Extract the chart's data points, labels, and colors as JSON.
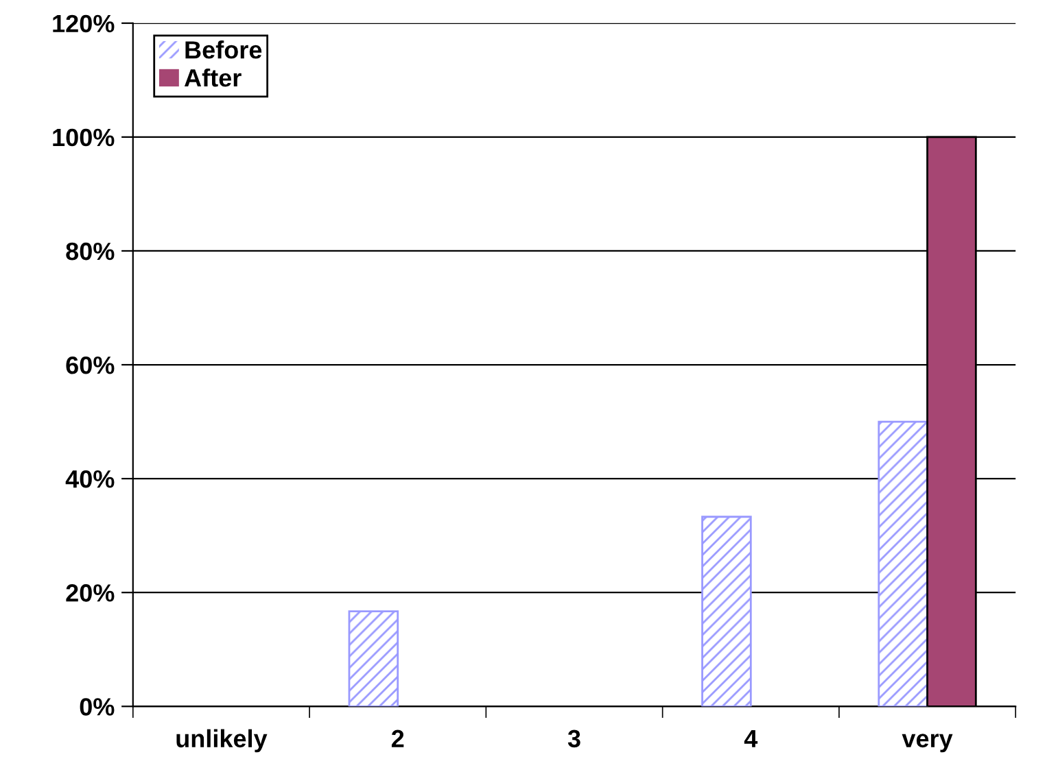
{
  "chart_data": {
    "type": "bar",
    "categories": [
      "unlikely",
      "2",
      "3",
      "4",
      "very"
    ],
    "series": [
      {
        "name": "Before",
        "color": "#9999ff",
        "values": [
          0,
          16.7,
          0,
          33.3,
          50
        ]
      },
      {
        "name": "After",
        "color": "#a64673",
        "values": [
          0,
          0,
          0,
          0,
          100
        ]
      }
    ],
    "ylim": [
      0,
      120
    ],
    "yticks": [
      {
        "value": 0,
        "label": "0%"
      },
      {
        "value": 20,
        "label": "20%"
      },
      {
        "value": 40,
        "label": "40%"
      },
      {
        "value": 60,
        "label": "60%"
      },
      {
        "value": 80,
        "label": "80%"
      },
      {
        "value": 100,
        "label": "100%"
      },
      {
        "value": 120,
        "label": "120%"
      }
    ],
    "grid": "y",
    "legend": "top left"
  }
}
